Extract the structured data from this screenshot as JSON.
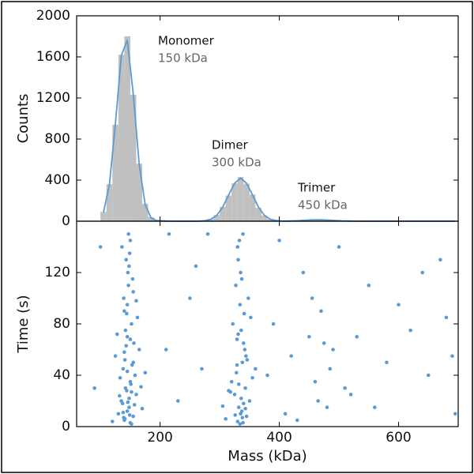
{
  "chart_data": [
    {
      "type": "histogram",
      "ylabel": "Counts",
      "xlim": [
        60,
        700
      ],
      "xticks": [
        200,
        400,
        600
      ],
      "ylim": [
        0,
        2000
      ],
      "yticks": [
        0,
        400,
        800,
        1200,
        1600,
        2000
      ],
      "color": "#c0c0c0",
      "bins": [
        100,
        110,
        120,
        130,
        140,
        150,
        160,
        170,
        180,
        190,
        200,
        210,
        220,
        230,
        240,
        250,
        260,
        270,
        280,
        290,
        300,
        310,
        320,
        330,
        340,
        350,
        360,
        370,
        380,
        390,
        400,
        410,
        420,
        430,
        440,
        450,
        460,
        470,
        480,
        490,
        500,
        510,
        520,
        530,
        540,
        550,
        560,
        570,
        580,
        590,
        600,
        610,
        620,
        630,
        640,
        650,
        660,
        670,
        680,
        690,
        700
      ],
      "counts": [
        90,
        360,
        940,
        1620,
        1800,
        1230,
        560,
        170,
        40,
        15,
        10,
        8,
        6,
        5,
        5,
        6,
        8,
        12,
        22,
        60,
        140,
        250,
        370,
        430,
        365,
        260,
        130,
        55,
        20,
        8,
        6,
        5,
        5,
        6,
        8,
        12,
        15,
        14,
        10,
        6,
        4,
        3,
        3,
        2,
        2,
        2,
        2,
        1,
        1,
        1,
        1,
        1,
        1,
        1,
        1,
        0,
        0,
        0,
        0,
        0
      ],
      "fit": {
        "color": "#5b9bd5",
        "x": [
          105,
          115,
          125,
          135,
          145,
          155,
          165,
          175,
          185,
          195,
          205,
          215,
          225,
          235,
          245,
          255,
          265,
          275,
          285,
          295,
          305,
          315,
          325,
          335,
          345,
          355,
          365,
          375,
          385,
          395,
          405,
          415,
          425,
          435,
          445,
          455,
          465,
          475,
          485,
          495,
          505,
          515,
          525,
          535,
          545,
          555,
          565,
          575,
          585,
          595,
          605,
          615,
          625,
          635,
          645,
          655,
          665,
          675,
          685,
          695
        ],
        "values": [
          86,
          356,
          950,
          1614,
          1764,
          1236,
          554,
          160,
          30,
          4,
          2,
          1,
          0,
          0,
          0,
          0,
          1,
          5,
          19,
          57,
          136,
          255,
          370,
          420,
          370,
          255,
          136,
          57,
          19,
          7,
          1,
          2,
          4,
          7,
          10,
          13,
          14,
          13,
          10,
          7,
          4,
          2,
          1,
          0,
          0,
          0,
          0,
          0,
          0,
          0,
          0,
          0,
          0,
          0,
          0,
          0,
          0,
          0,
          0,
          0
        ]
      },
      "annotations": [
        {
          "text": "Monomer",
          "subtext": "150 kDa"
        },
        {
          "text": "Dimer",
          "subtext": "300 kDa"
        },
        {
          "text": "Trimer",
          "subtext": "450 kDa"
        }
      ]
    },
    {
      "type": "scatter",
      "xlabel": "Mass (kDa)",
      "ylabel": "Time (s)",
      "xlim": [
        60,
        700
      ],
      "xticks": [
        200,
        400,
        600
      ],
      "ylim": [
        0,
        160
      ],
      "yticks": [
        0,
        40,
        80,
        120
      ],
      "color": "#5b9bd5",
      "x": [
        140,
        145,
        150,
        135,
        155,
        142,
        148,
        138,
        152,
        160,
        130,
        165,
        145,
        150,
        140,
        155,
        147,
        143,
        137,
        158,
        125,
        170,
        148,
        152,
        141,
        139,
        156,
        144,
        150,
        146,
        133,
        162,
        149,
        153,
        142,
        136,
        157,
        145,
        151,
        140,
        120,
        175,
        148,
        143,
        155,
        138,
        147,
        152,
        144,
        149,
        128,
        168,
        146,
        141,
        154,
        139,
        150,
        145,
        132,
        160,
        330,
        335,
        340,
        325,
        345,
        320,
        338,
        332,
        342,
        328,
        350,
        315,
        336,
        334,
        339,
        327,
        344,
        331,
        337,
        341,
        355,
        310,
        333,
        329,
        343,
        336,
        322,
        348,
        330,
        338,
        360,
        305,
        335,
        340,
        326,
        346,
        332,
        339,
        318,
        352,
        334,
        337,
        329,
        343,
        331,
        90,
        100,
        210,
        230,
        250,
        270,
        280,
        390,
        410,
        420,
        440,
        450,
        460,
        470,
        480,
        490,
        500,
        520,
        550,
        580,
        600,
        620,
        650,
        670,
        690,
        400,
        430,
        455,
        475,
        510,
        560,
        640,
        680,
        260,
        215,
        380,
        465,
        485,
        530,
        695
      ],
      "values": [
        5,
        12,
        3,
        20,
        8,
        30,
        15,
        45,
        2,
        25,
        10,
        60,
        70,
        35,
        90,
        50,
        110,
        130,
        18,
        40,
        55,
        14,
        22,
        80,
        6,
        100,
        65,
        28,
        145,
        120,
        38,
        85,
        9,
        48,
        75,
        140,
        17,
        95,
        33,
        58,
        4,
        42,
        125,
        63,
        105,
        11,
        150,
        27,
        88,
        135,
        72,
        31,
        19,
        52,
        115,
        7,
        68,
        43,
        24,
        98,
        4,
        10,
        18,
        25,
        8,
        35,
        50,
        15,
        60,
        42,
        20,
        28,
        75,
        95,
        3,
        110,
        55,
        130,
        12,
        88,
        38,
        6,
        145,
        68,
        30,
        22,
        80,
        100,
        140,
        7,
        45,
        16,
        120,
        65,
        9,
        52,
        33,
        150,
        27,
        85,
        2,
        115,
        48,
        14,
        72,
        30,
        140,
        60,
        20,
        100,
        45,
        150,
        80,
        10,
        55,
        120,
        70,
        35,
        90,
        15,
        60,
        140,
        25,
        110,
        50,
        95,
        75,
        40,
        130,
        55,
        145,
        5,
        100,
        65,
        30,
        15,
        120,
        85,
        125,
        150,
        40,
        20,
        45,
        70,
        10
      ]
    }
  ]
}
